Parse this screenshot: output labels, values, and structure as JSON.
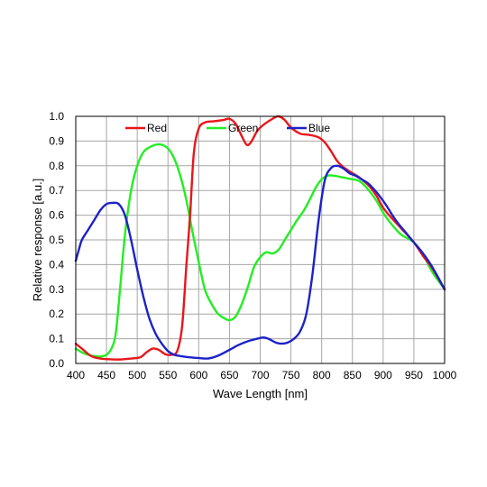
{
  "chart_data": {
    "type": "line",
    "xlabel": "Wave Length [nm]",
    "ylabel": "Relative response [a.u.]",
    "xlim": [
      400,
      1000
    ],
    "ylim": [
      0,
      1.0
    ],
    "x_ticks": [
      "400",
      "450",
      "500",
      "550",
      "600",
      "650",
      "700",
      "750",
      "800",
      "850",
      "900",
      "950",
      "1000"
    ],
    "y_ticks": [
      "0.0",
      "0.1",
      "0.2",
      "0.3",
      "0.4",
      "0.5",
      "0.6",
      "0.7",
      "0.8",
      "0.9",
      "1.0"
    ],
    "grid": true,
    "legend_position": "top",
    "series": [
      {
        "name": "Red",
        "color": "#e8161b",
        "points": [
          [
            400,
            0.08
          ],
          [
            410,
            0.06
          ],
          [
            425,
            0.03
          ],
          [
            440,
            0.02
          ],
          [
            455,
            0.017
          ],
          [
            470,
            0.016
          ],
          [
            490,
            0.02
          ],
          [
            505,
            0.025
          ],
          [
            515,
            0.045
          ],
          [
            525,
            0.06
          ],
          [
            535,
            0.055
          ],
          [
            545,
            0.038
          ],
          [
            555,
            0.035
          ],
          [
            565,
            0.05
          ],
          [
            573,
            0.15
          ],
          [
            580,
            0.4
          ],
          [
            586,
            0.6
          ],
          [
            592,
            0.85
          ],
          [
            600,
            0.95
          ],
          [
            610,
            0.975
          ],
          [
            625,
            0.98
          ],
          [
            640,
            0.985
          ],
          [
            650,
            0.99
          ],
          [
            660,
            0.97
          ],
          [
            670,
            0.92
          ],
          [
            678,
            0.885
          ],
          [
            685,
            0.895
          ],
          [
            695,
            0.94
          ],
          [
            705,
            0.965
          ],
          [
            720,
            0.99
          ],
          [
            730,
            1.0
          ],
          [
            740,
            0.985
          ],
          [
            750,
            0.955
          ],
          [
            765,
            0.93
          ],
          [
            780,
            0.925
          ],
          [
            795,
            0.915
          ],
          [
            805,
            0.895
          ],
          [
            815,
            0.86
          ],
          [
            825,
            0.82
          ],
          [
            835,
            0.795
          ],
          [
            850,
            0.77
          ],
          [
            860,
            0.755
          ],
          [
            870,
            0.735
          ],
          [
            880,
            0.71
          ],
          [
            890,
            0.675
          ],
          [
            900,
            0.63
          ],
          [
            915,
            0.585
          ],
          [
            930,
            0.545
          ],
          [
            950,
            0.49
          ],
          [
            965,
            0.435
          ],
          [
            980,
            0.385
          ],
          [
            1000,
            0.3
          ]
        ]
      },
      {
        "name": "Green",
        "color": "#22ee22",
        "points": [
          [
            400,
            0.06
          ],
          [
            410,
            0.045
          ],
          [
            420,
            0.035
          ],
          [
            430,
            0.03
          ],
          [
            440,
            0.028
          ],
          [
            450,
            0.035
          ],
          [
            458,
            0.06
          ],
          [
            465,
            0.12
          ],
          [
            472,
            0.3
          ],
          [
            480,
            0.52
          ],
          [
            490,
            0.7
          ],
          [
            500,
            0.8
          ],
          [
            510,
            0.855
          ],
          [
            520,
            0.875
          ],
          [
            530,
            0.885
          ],
          [
            540,
            0.885
          ],
          [
            550,
            0.87
          ],
          [
            560,
            0.83
          ],
          [
            570,
            0.76
          ],
          [
            580,
            0.66
          ],
          [
            590,
            0.53
          ],
          [
            600,
            0.41
          ],
          [
            610,
            0.3
          ],
          [
            620,
            0.245
          ],
          [
            630,
            0.205
          ],
          [
            640,
            0.185
          ],
          [
            650,
            0.175
          ],
          [
            660,
            0.19
          ],
          [
            670,
            0.24
          ],
          [
            680,
            0.31
          ],
          [
            690,
            0.39
          ],
          [
            700,
            0.43
          ],
          [
            710,
            0.45
          ],
          [
            720,
            0.445
          ],
          [
            730,
            0.46
          ],
          [
            740,
            0.5
          ],
          [
            750,
            0.54
          ],
          [
            760,
            0.58
          ],
          [
            770,
            0.615
          ],
          [
            780,
            0.66
          ],
          [
            790,
            0.71
          ],
          [
            800,
            0.745
          ],
          [
            810,
            0.76
          ],
          [
            820,
            0.76
          ],
          [
            830,
            0.755
          ],
          [
            840,
            0.75
          ],
          [
            850,
            0.745
          ],
          [
            860,
            0.74
          ],
          [
            870,
            0.72
          ],
          [
            880,
            0.69
          ],
          [
            890,
            0.655
          ],
          [
            900,
            0.61
          ],
          [
            910,
            0.575
          ],
          [
            920,
            0.545
          ],
          [
            930,
            0.52
          ],
          [
            950,
            0.49
          ],
          [
            965,
            0.44
          ],
          [
            980,
            0.37
          ],
          [
            1000,
            0.3
          ]
        ]
      },
      {
        "name": "Blue",
        "color": "#1c22c8",
        "points": [
          [
            400,
            0.415
          ],
          [
            405,
            0.46
          ],
          [
            410,
            0.5
          ],
          [
            420,
            0.54
          ],
          [
            430,
            0.58
          ],
          [
            440,
            0.62
          ],
          [
            450,
            0.645
          ],
          [
            460,
            0.65
          ],
          [
            470,
            0.645
          ],
          [
            480,
            0.6
          ],
          [
            490,
            0.5
          ],
          [
            500,
            0.38
          ],
          [
            510,
            0.27
          ],
          [
            520,
            0.18
          ],
          [
            530,
            0.12
          ],
          [
            540,
            0.08
          ],
          [
            550,
            0.05
          ],
          [
            560,
            0.035
          ],
          [
            570,
            0.03
          ],
          [
            585,
            0.025
          ],
          [
            600,
            0.022
          ],
          [
            615,
            0.02
          ],
          [
            630,
            0.03
          ],
          [
            650,
            0.055
          ],
          [
            665,
            0.075
          ],
          [
            680,
            0.09
          ],
          [
            695,
            0.1
          ],
          [
            705,
            0.105
          ],
          [
            715,
            0.098
          ],
          [
            725,
            0.085
          ],
          [
            735,
            0.08
          ],
          [
            745,
            0.085
          ],
          [
            755,
            0.1
          ],
          [
            765,
            0.13
          ],
          [
            775,
            0.2
          ],
          [
            785,
            0.36
          ],
          [
            795,
            0.58
          ],
          [
            805,
            0.74
          ],
          [
            815,
            0.79
          ],
          [
            825,
            0.8
          ],
          [
            835,
            0.79
          ],
          [
            845,
            0.77
          ],
          [
            855,
            0.76
          ],
          [
            865,
            0.745
          ],
          [
            875,
            0.73
          ],
          [
            885,
            0.705
          ],
          [
            895,
            0.675
          ],
          [
            905,
            0.64
          ],
          [
            915,
            0.6
          ],
          [
            925,
            0.565
          ],
          [
            935,
            0.535
          ],
          [
            950,
            0.49
          ],
          [
            965,
            0.445
          ],
          [
            980,
            0.39
          ],
          [
            1000,
            0.3
          ]
        ]
      }
    ]
  }
}
